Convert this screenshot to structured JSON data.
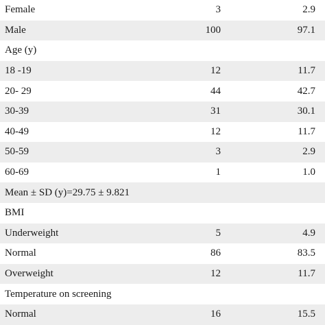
{
  "rows": [
    {
      "label": "Female",
      "n": "3",
      "pct": "2.9",
      "shade": false
    },
    {
      "label": "Male",
      "n": "100",
      "pct": "97.1",
      "shade": true
    },
    {
      "label": "Age (y)",
      "n": "",
      "pct": "",
      "shade": false
    },
    {
      "label": "18 -19",
      "n": "12",
      "pct": "11.7",
      "shade": true
    },
    {
      "label": "20- 29",
      "n": "44",
      "pct": "42.7",
      "shade": false
    },
    {
      "label": "30-39",
      "n": "31",
      "pct": "30.1",
      "shade": true
    },
    {
      "label": "40-49",
      "n": "12",
      "pct": "11.7",
      "shade": false
    },
    {
      "label": "50-59",
      "n": "3",
      "pct": "2.9",
      "shade": true
    },
    {
      "label": "60-69",
      "n": "1",
      "pct": "1.0",
      "shade": false
    },
    {
      "label": "Mean ± SD (y)=29.75 ± 9.821",
      "n": "",
      "pct": "",
      "shade": true
    },
    {
      "label": "BMI",
      "n": "",
      "pct": "",
      "shade": false
    },
    {
      "label": "Underweight",
      "n": "5",
      "pct": "4.9",
      "shade": true
    },
    {
      "label": "Normal",
      "n": "86",
      "pct": "83.5",
      "shade": false
    },
    {
      "label": "Overweight",
      "n": "12",
      "pct": "11.7",
      "shade": true
    },
    {
      "label": "Temperature on screening",
      "n": "",
      "pct": "",
      "shade": false
    },
    {
      "label": "Normal",
      "n": "16",
      "pct": "15.5",
      "shade": true
    }
  ]
}
